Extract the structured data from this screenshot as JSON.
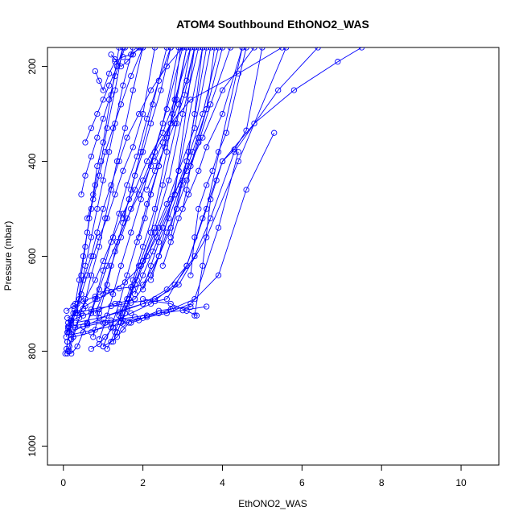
{
  "chart_data": {
    "type": "line",
    "title": "ATOM4 Southbound EthONO2_WAS",
    "xlabel": "EthONO2_WAS",
    "ylabel": "Pressure (mbar)",
    "xlim": [
      -0.4,
      10.95
    ],
    "ylim": [
      1040,
      160
    ],
    "y_reversed": true,
    "x_ticks": [
      0,
      2,
      4,
      6,
      8,
      10
    ],
    "y_ticks": [
      200,
      400,
      600,
      800,
      1000
    ],
    "series_color": "#0000ff",
    "marker": "open-circle",
    "grid": false,
    "legend": "none",
    "series": [
      {
        "x": [
          0.11,
          0.2,
          0.35,
          0.5,
          0.7,
          0.85,
          1.0,
          1.2,
          1.4,
          1.6,
          1.9,
          2.2,
          2.6,
          3.0
        ],
        "y": [
          760,
          735,
          700,
          650,
          600,
          550,
          500,
          450,
          400,
          350,
          300,
          250,
          200,
          160
        ]
      },
      {
        "x": [
          0.1,
          0.18,
          0.3,
          0.45,
          0.6,
          0.75,
          0.9,
          1.1,
          1.3,
          1.5,
          1.75,
          2.0,
          2.3
        ],
        "y": [
          780,
          750,
          720,
          680,
          640,
          600,
          560,
          520,
          470,
          420,
          370,
          300,
          160
        ]
      },
      {
        "x": [
          0.15,
          0.25,
          0.4,
          0.55,
          0.8,
          1.0,
          1.25,
          1.5,
          1.8,
          2.1,
          2.5,
          2.8,
          3.2
        ],
        "y": [
          800,
          770,
          730,
          690,
          650,
          610,
          560,
          510,
          460,
          400,
          340,
          270,
          160
        ]
      },
      {
        "x": [
          0.2,
          0.35,
          0.5,
          0.7,
          0.9,
          1.1,
          1.35,
          1.6,
          1.9,
          2.2,
          2.5,
          2.9
        ],
        "y": [
          805,
          790,
          760,
          720,
          670,
          620,
          570,
          520,
          470,
          410,
          320,
          160
        ]
      },
      {
        "x": [
          0.12,
          0.3,
          0.55,
          0.85,
          1.2,
          1.55,
          1.95,
          2.35,
          2.8,
          3.3
        ],
        "y": [
          740,
          720,
          705,
          690,
          675,
          655,
          620,
          560,
          470,
          160
        ]
      },
      {
        "x": [
          0.08,
          0.25,
          0.5,
          0.8,
          1.1,
          1.4,
          1.7,
          2.0,
          2.4,
          2.9,
          3.5
        ],
        "y": [
          715,
          705,
          695,
          685,
          672,
          668,
          665,
          660,
          600,
          420,
          160
        ]
      },
      {
        "x": [
          0.3,
          0.4,
          0.5,
          0.6,
          0.7,
          0.8,
          0.95,
          1.1,
          1.3,
          1.5
        ],
        "y": [
          700,
          650,
          600,
          550,
          500,
          450,
          400,
          330,
          250,
          160
        ]
      },
      {
        "x": [
          0.35,
          0.45,
          0.55,
          0.65,
          0.75,
          0.85,
          1.0,
          1.2,
          1.4
        ],
        "y": [
          720,
          640,
          580,
          520,
          470,
          410,
          360,
          260,
          160
        ]
      },
      {
        "x": [
          0.4,
          0.55,
          0.7,
          0.85,
          1.0,
          1.15,
          1.3,
          1.5,
          1.75
        ],
        "y": [
          690,
          620,
          560,
          500,
          440,
          380,
          320,
          240,
          160
        ]
      },
      {
        "x": [
          0.5,
          0.7,
          0.9,
          1.05,
          1.2,
          1.35,
          1.55,
          1.75,
          2.0
        ],
        "y": [
          710,
          640,
          580,
          520,
          460,
          400,
          330,
          250,
          160
        ]
      },
      {
        "x": [
          0.6,
          0.8,
          1.0,
          1.2,
          1.4,
          1.6,
          1.85,
          2.1,
          2.4,
          2.7
        ],
        "y": [
          740,
          690,
          630,
          570,
          510,
          450,
          390,
          310,
          230,
          160
        ]
      },
      {
        "x": [
          0.75,
          0.9,
          1.1,
          1.3,
          1.5,
          1.7,
          1.95,
          2.25,
          2.6
        ],
        "y": [
          770,
          720,
          660,
          590,
          530,
          460,
          380,
          280,
          160
        ]
      },
      {
        "x": [
          0.9,
          1.05,
          1.25,
          1.45,
          1.7,
          1.95,
          2.25,
          2.6,
          3.0
        ],
        "y": [
          775,
          740,
          680,
          620,
          550,
          480,
          390,
          290,
          160
        ]
      },
      {
        "x": [
          1.0,
          1.2,
          1.4,
          1.6,
          1.85,
          2.1,
          2.4,
          2.75,
          3.1
        ],
        "y": [
          790,
          750,
          700,
          640,
          570,
          490,
          410,
          300,
          160
        ]
      },
      {
        "x": [
          1.1,
          1.3,
          1.5,
          1.75,
          2.0,
          2.3,
          2.6,
          2.95
        ],
        "y": [
          795,
          760,
          710,
          650,
          580,
          500,
          380,
          160
        ]
      },
      {
        "x": [
          1.25,
          1.45,
          1.65,
          1.9,
          2.2,
          2.5,
          2.85,
          3.2
        ],
        "y": [
          780,
          740,
          690,
          620,
          550,
          450,
          320,
          160
        ]
      },
      {
        "x": [
          1.35,
          1.55,
          1.75,
          2.0,
          2.3,
          2.65,
          3.0,
          3.4
        ],
        "y": [
          760,
          720,
          670,
          610,
          540,
          440,
          300,
          160
        ]
      },
      {
        "x": [
          0.2,
          0.5,
          0.9,
          1.3,
          1.8,
          2.2,
          2.7,
          3.1,
          3.6
        ],
        "y": [
          735,
          725,
          712,
          700,
          690,
          640,
          540,
          400,
          160
        ]
      },
      {
        "x": [
          0.15,
          0.6,
          1.1,
          1.6,
          2.0,
          2.6,
          3.1,
          3.6,
          4.5
        ],
        "y": [
          760,
          745,
          725,
          710,
          700,
          690,
          620,
          500,
          160
        ]
      },
      {
        "x": [
          0.1,
          0.3,
          0.7,
          1.2,
          1.7,
          2.3,
          2.9,
          3.6,
          4.4,
          5.6
        ],
        "y": [
          730,
          720,
          712,
          705,
          698,
          690,
          660,
          560,
          400,
          160
        ]
      },
      {
        "x": [
          0.12,
          0.5,
          1.0,
          1.5,
          2.0,
          2.6,
          3.2,
          3.9,
          4.6,
          5.3
        ],
        "y": [
          752,
          748,
          740,
          735,
          730,
          720,
          700,
          640,
          460,
          340
        ]
      },
      {
        "x": [
          0.14,
          0.6,
          1.2,
          1.8,
          2.4,
          3.0,
          3.6
        ],
        "y": [
          748,
          742,
          735,
          728,
          720,
          714,
          706
        ]
      },
      {
        "x": [
          0.2,
          0.8,
          1.5,
          2.1,
          2.7,
          3.3,
          3.9,
          4.4
        ],
        "y": [
          765,
          755,
          742,
          728,
          712,
          690,
          540,
          380
        ]
      },
      {
        "x": [
          0.3,
          0.9,
          1.4,
          2.0,
          2.6,
          3.1,
          3.5,
          4.0,
          4.8,
          5.8,
          6.9,
          7.5
        ],
        "y": [
          740,
          730,
          718,
          700,
          670,
          620,
          520,
          400,
          320,
          250,
          190,
          160
        ]
      },
      {
        "x": [
          0.25,
          0.7,
          1.2,
          1.7,
          2.2,
          2.8,
          3.3,
          3.7,
          4.3,
          5.4,
          6.4
        ],
        "y": [
          770,
          760,
          740,
          720,
          700,
          660,
          600,
          520,
          380,
          250,
          160
        ]
      },
      {
        "x": [
          0.8,
          1.0,
          1.2,
          1.45,
          1.7,
          2.0,
          2.3,
          2.7,
          3.2,
          4.4,
          5.5
        ],
        "y": [
          720,
          680,
          620,
          560,
          500,
          440,
          380,
          320,
          270,
          215,
          160
        ]
      },
      {
        "x": [
          1.4,
          1.6,
          1.85,
          2.1,
          2.4,
          2.7,
          3.1,
          3.5,
          4.0,
          4.8
        ],
        "y": [
          725,
          690,
          650,
          600,
          540,
          480,
          420,
          350,
          250,
          160
        ]
      },
      {
        "x": [
          1.6,
          1.8,
          2.0,
          2.3,
          2.6,
          2.9,
          3.3,
          3.7
        ],
        "y": [
          700,
          660,
          610,
          550,
          490,
          420,
          330,
          160
        ]
      },
      {
        "x": [
          1.8,
          2.0,
          2.25,
          2.5,
          2.8,
          3.1,
          3.5,
          3.9
        ],
        "y": [
          680,
          640,
          590,
          540,
          470,
          400,
          300,
          160
        ]
      },
      {
        "x": [
          2.0,
          2.2,
          2.4,
          2.65,
          2.95,
          3.25,
          3.6,
          4.0
        ],
        "y": [
          670,
          620,
          570,
          520,
          450,
          380,
          290,
          160
        ]
      },
      {
        "x": [
          2.2,
          2.4,
          2.6,
          2.85,
          3.1,
          3.4,
          3.7,
          4.2
        ],
        "y": [
          650,
          600,
          550,
          500,
          440,
          360,
          280,
          160
        ]
      },
      {
        "x": [
          2.5,
          2.7,
          2.9,
          3.15,
          3.4,
          3.6,
          4.0,
          4.5
        ],
        "y": [
          620,
          570,
          520,
          470,
          420,
          370,
          300,
          160
        ]
      },
      {
        "x": [
          3.2,
          3.3,
          3.4,
          3.6,
          3.75,
          3.9,
          4.1,
          4.6
        ],
        "y": [
          640,
          560,
          500,
          450,
          420,
          380,
          340,
          160
        ]
      },
      {
        "x": [
          3.3,
          3.5,
          3.7,
          3.85,
          4.0,
          4.3,
          4.6,
          5.0
        ],
        "y": [
          725,
          620,
          480,
          440,
          400,
          375,
          335,
          160
        ]
      },
      {
        "x": [
          0.8,
          0.9,
          1.0,
          1.15,
          1.3,
          1.5,
          1.7,
          1.95
        ],
        "y": [
          210,
          230,
          250,
          215,
          190,
          180,
          175,
          160
        ]
      },
      {
        "x": [
          1.2,
          1.3,
          1.45,
          1.6,
          1.75,
          1.9
        ],
        "y": [
          175,
          185,
          200,
          190,
          175,
          160
        ]
      },
      {
        "x": [
          0.55,
          0.7,
          0.85,
          1.0,
          1.15,
          1.35,
          1.5
        ],
        "y": [
          360,
          330,
          300,
          270,
          240,
          200,
          160
        ]
      },
      {
        "x": [
          0.45,
          0.55,
          0.7,
          0.85,
          1.0,
          1.15,
          1.3,
          1.55
        ],
        "y": [
          470,
          430,
          390,
          350,
          310,
          270,
          220,
          160
        ]
      },
      {
        "x": [
          0.6,
          0.75,
          0.9,
          1.05,
          1.25,
          1.45,
          1.7,
          2.0
        ],
        "y": [
          520,
          480,
          430,
          380,
          330,
          280,
          220,
          160
        ]
      },
      {
        "x": [
          2.3,
          2.5,
          2.7,
          2.9,
          3.1,
          3.3
        ],
        "y": [
          400,
          360,
          320,
          280,
          230,
          160
        ]
      },
      {
        "x": [
          2.7,
          2.85,
          3.0,
          3.15,
          3.3,
          3.5
        ],
        "y": [
          560,
          500,
          440,
          380,
          300,
          160
        ]
      },
      {
        "x": [
          3.0,
          3.1,
          3.2,
          3.4,
          3.6,
          3.8
        ],
        "y": [
          500,
          460,
          410,
          350,
          290,
          160
        ]
      },
      {
        "x": [
          2.1,
          2.3,
          2.55,
          2.8,
          3.05,
          3.3
        ],
        "y": [
          460,
          420,
          370,
          320,
          260,
          160
        ]
      },
      {
        "x": [
          1.5,
          1.65,
          1.8,
          2.0,
          2.2,
          2.45,
          2.7
        ],
        "y": [
          520,
          480,
          430,
          380,
          320,
          250,
          160
        ]
      },
      {
        "x": [
          1.9,
          2.05,
          2.2,
          2.4,
          2.6,
          2.85,
          3.1
        ],
        "y": [
          560,
          520,
          470,
          410,
          350,
          270,
          160
        ]
      },
      {
        "x": [
          0.1,
          0.12,
          0.15,
          0.2,
          0.3,
          0.45
        ],
        "y": [
          805,
          800,
          790,
          775,
          750,
          720
        ]
      },
      {
        "x": [
          0.05,
          0.08,
          0.1,
          0.14,
          0.2,
          0.28
        ],
        "y": [
          805,
          795,
          780,
          760,
          740,
          712
        ]
      },
      {
        "x": [
          0.07,
          0.1,
          0.12,
          0.18,
          0.25
        ],
        "y": [
          770,
          760,
          748,
          736,
          720
        ]
      },
      {
        "x": [
          1.0,
          1.2,
          1.35,
          1.5,
          1.65
        ],
        "y": [
          790,
          780,
          770,
          755,
          740
        ]
      },
      {
        "x": [
          0.7,
          0.9,
          1.05,
          1.25,
          1.45
        ],
        "y": [
          795,
          785,
          770,
          750,
          730
        ]
      },
      {
        "x": [
          1.7,
          1.9,
          2.1,
          2.4,
          2.75,
          3.2
        ],
        "y": [
          740,
          735,
          725,
          715,
          710,
          707
        ]
      },
      {
        "x": [
          2.0,
          2.3,
          2.7,
          3.1,
          3.35
        ],
        "y": [
          690,
          695,
          700,
          715,
          725
        ]
      }
    ]
  }
}
